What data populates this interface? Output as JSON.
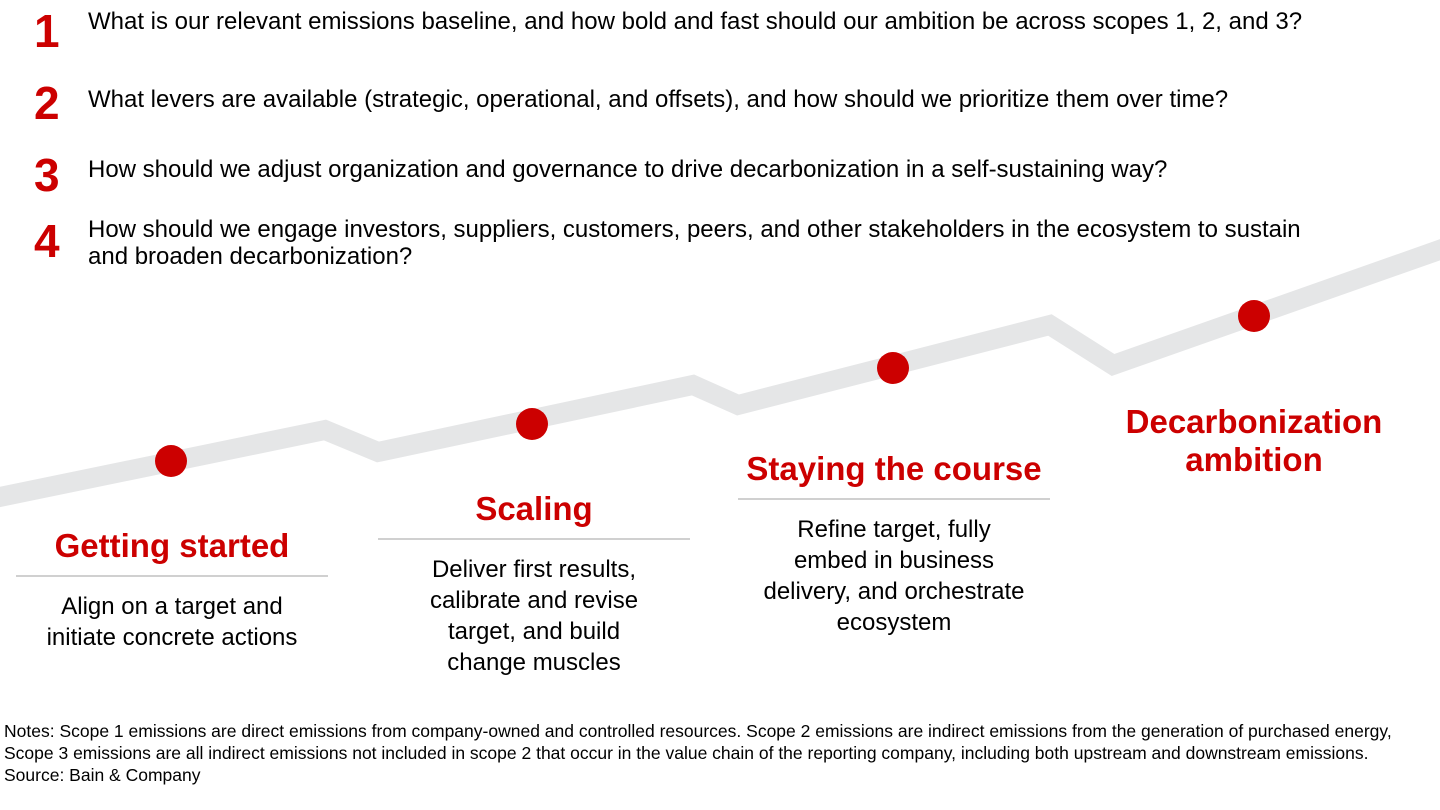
{
  "questions": [
    {
      "number": "1",
      "text": "What is our relevant emissions baseline, and how bold and fast should our ambition be across scopes 1, 2, and 3?"
    },
    {
      "number": "2",
      "text": "What levers are available (strategic, operational, and offsets), and how should we prioritize them over time?"
    },
    {
      "number": "3",
      "text": "How should we adjust organization and governance to drive decarbonization in a self-sustaining way?"
    },
    {
      "number": "4",
      "text": "How should we engage investors, suppliers, customers, peers, and other stakeholders in the ecosystem to sustain and broaden decarbonization?"
    }
  ],
  "stages": [
    {
      "title": "Getting started",
      "description": "Align on a target and initiate concrete actions"
    },
    {
      "title": "Scaling",
      "description": "Deliver first results, calibrate and revise target, and build change muscles"
    },
    {
      "title": "Staying the course",
      "description": "Refine target, fully embed in business delivery, and orchestrate ecosystem"
    },
    {
      "title": "Decarbonization ambition",
      "description": ""
    }
  ],
  "notes": {
    "notes_text": "Notes: Scope 1 emissions are direct emissions from company-owned and controlled resources. Scope 2 emissions are indirect emissions from the generation of purchased energy, Scope 3 emissions are all indirect emissions not included in scope 2 that occur in the value chain of the reporting company, including both upstream and downstream emissions.",
    "source": "Source: Bain & Company"
  },
  "colors": {
    "accent": "#cc0000",
    "path": "#e5e6e7",
    "rule": "#d0d0d0"
  }
}
